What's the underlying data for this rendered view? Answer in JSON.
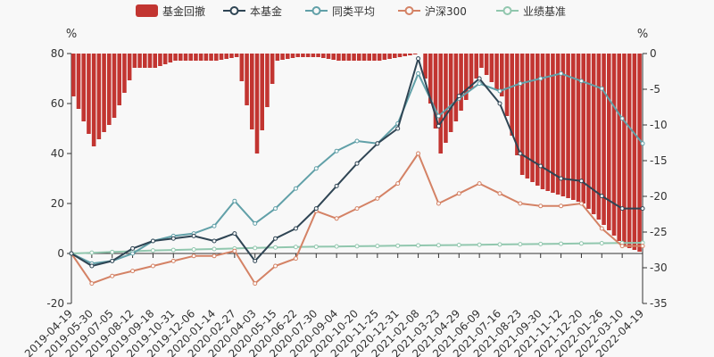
{
  "chart_data": {
    "type": "line",
    "legend": {
      "placement": "top-center",
      "items": [
        {
          "name": "基金回撤",
          "color": "#c23531",
          "kind": "bar"
        },
        {
          "name": "本基金",
          "color": "#2f4554",
          "kind": "line"
        },
        {
          "name": "同类平均",
          "color": "#61a0a8",
          "kind": "line"
        },
        {
          "name": "沪深300",
          "color": "#d48265",
          "kind": "line"
        },
        {
          "name": "业绩基准",
          "color": "#91c7ae",
          "kind": "line"
        }
      ]
    },
    "left_axis": {
      "unit": "%",
      "min": -20,
      "max": 80,
      "ticks": [
        "-20",
        "0",
        "20",
        "40",
        "60",
        "80"
      ]
    },
    "right_axis": {
      "unit": "%",
      "min": -35,
      "max": 0,
      "ticks": [
        "-35",
        "-30",
        "-25",
        "-20",
        "-15",
        "-10",
        "-5",
        "0"
      ]
    },
    "x_ticks": [
      "2019-04-19",
      "2019-05-30",
      "2019-07-05",
      "2019-08-12",
      "2019-09-18",
      "2019-10-31",
      "2019-12-06",
      "2020-01-14",
      "2020-02-27",
      "2020-04-03",
      "2020-05-15",
      "2020-06-22",
      "2020-07-30",
      "2020-09-04",
      "2020-10-20",
      "2020-11-25",
      "2020-12-31",
      "2021-02-08",
      "2021-03-23",
      "2021-04-29",
      "2021-06-09",
      "2021-07-16",
      "2021-08-23",
      "2021-09-30",
      "2021-11-12",
      "2021-12-20",
      "2022-01-26",
      "2022-03-10",
      "2022-04-19"
    ],
    "series": [
      {
        "name": "本基金",
        "x_index": [
          0,
          1,
          2,
          3,
          4,
          5,
          6,
          7,
          8,
          9,
          10,
          11,
          12,
          13,
          14,
          15,
          16,
          17,
          18,
          19,
          20,
          21,
          22,
          23,
          24,
          25,
          26,
          27,
          28
        ],
        "values": [
          0,
          -5,
          -3,
          2,
          5,
          6,
          7,
          5,
          8,
          -3,
          6,
          10,
          18,
          27,
          36,
          44,
          50,
          78,
          51,
          63,
          70,
          60,
          40,
          35,
          30,
          29,
          23,
          18,
          18
        ]
      },
      {
        "name": "同类平均",
        "x_index": [
          0,
          1,
          2,
          3,
          4,
          5,
          6,
          7,
          8,
          9,
          10,
          11,
          12,
          13,
          14,
          15,
          16,
          17,
          18,
          19,
          20,
          21,
          22,
          23,
          24,
          25,
          26,
          27,
          28
        ],
        "values": [
          0,
          -4,
          -3,
          0,
          5,
          7,
          8,
          11,
          21,
          12,
          18,
          26,
          34,
          41,
          45,
          44,
          52,
          72,
          55,
          62,
          68,
          65,
          68,
          70,
          72,
          69,
          66,
          54,
          44
        ]
      },
      {
        "name": "沪深300",
        "x_index": [
          0,
          1,
          2,
          3,
          4,
          5,
          6,
          7,
          8,
          9,
          10,
          11,
          12,
          13,
          14,
          15,
          16,
          17,
          18,
          19,
          20,
          21,
          22,
          23,
          24,
          25,
          26,
          27,
          28
        ],
        "values": [
          0,
          -12,
          -9,
          -7,
          -5,
          -3,
          -1,
          -1,
          1,
          -12,
          -5,
          -2,
          17,
          14,
          18,
          22,
          28,
          40,
          20,
          24,
          28,
          24,
          20,
          19,
          19,
          20,
          10,
          3,
          3
        ]
      },
      {
        "name": "业绩基准",
        "x_index": [
          0,
          1,
          2,
          3,
          4,
          5,
          6,
          7,
          8,
          9,
          10,
          11,
          12,
          13,
          14,
          15,
          16,
          17,
          18,
          19,
          20,
          21,
          22,
          23,
          24,
          25,
          26,
          27,
          28
        ],
        "values": [
          0,
          0.3,
          0.6,
          0.9,
          1.2,
          1.4,
          1.6,
          1.8,
          2.0,
          2.2,
          2.4,
          2.6,
          2.7,
          2.8,
          2.9,
          3.0,
          3.1,
          3.2,
          3.3,
          3.4,
          3.5,
          3.6,
          3.7,
          3.8,
          3.9,
          4.0,
          4.1,
          4.2,
          4.3
        ]
      },
      {
        "name": "基金回撤",
        "x_index": [
          0,
          1,
          2,
          3,
          4,
          5,
          6,
          7,
          8,
          9,
          10,
          11,
          12,
          13,
          14,
          15,
          16,
          17,
          18,
          19,
          20,
          21,
          22,
          23,
          24,
          25,
          26,
          27,
          28
        ],
        "values": [
          -6,
          -13,
          -9,
          -2,
          -2,
          -1,
          -1,
          -1,
          -0.5,
          -14,
          -1,
          -0.5,
          -0.5,
          -1,
          -1,
          -1,
          -0.5,
          0,
          -14,
          -8,
          -2,
          -6,
          -17,
          -19,
          -20,
          -21,
          -24,
          -27,
          -28
        ]
      }
    ]
  }
}
